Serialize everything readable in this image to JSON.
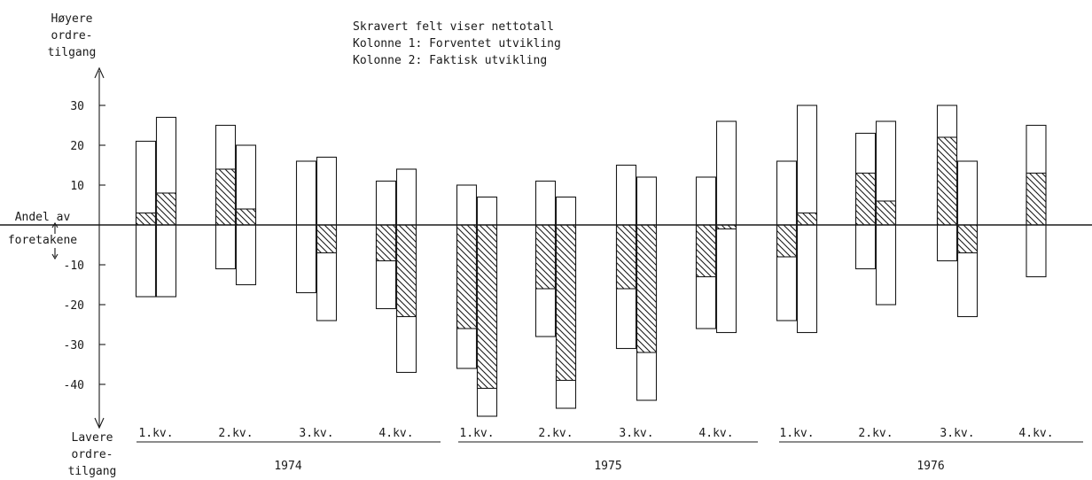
{
  "notes": [
    "Skravert felt viser nettotall",
    "Kolonne 1: Forventet utvikling",
    "Kolonne 2: Faktisk utvikling"
  ],
  "top_caption": [
    "Høyere",
    "ordre-",
    "tilgang"
  ],
  "mid_caption": [
    "Andel av",
    "foretakene"
  ],
  "bottom_caption": [
    "Lavere",
    "ordre-",
    "tilgang"
  ],
  "chart_data": {
    "type": "bar",
    "yticks": [
      30,
      20,
      10,
      -10,
      -20,
      -30,
      -40
    ],
    "ytick_labels": [
      "30",
      "20",
      "10",
      "-10",
      "-20",
      "-30",
      "-40"
    ],
    "ylim": [
      -49,
      34
    ],
    "years": [
      "1974",
      "1975",
      "1976"
    ],
    "quarter_labels": [
      "1.kv.",
      "2.kv.",
      "3.kv.",
      "4.kv.",
      "1.kv.",
      "2.kv.",
      "3.kv.",
      "4.kv.",
      "1.kv.",
      "2.kv.",
      "3.kv.",
      "4.kv."
    ],
    "quarters": [
      {
        "label": "1.kv.",
        "year": "1974",
        "bars": [
          {
            "up": 21,
            "down": -18,
            "net": 3
          },
          {
            "up": 27,
            "down": -18,
            "net": 8
          }
        ]
      },
      {
        "label": "2.kv.",
        "year": "1974",
        "bars": [
          {
            "up": 25,
            "down": -11,
            "net": 14
          },
          {
            "up": 20,
            "down": -15,
            "net": 4
          }
        ]
      },
      {
        "label": "3.kv.",
        "year": "1974",
        "bars": [
          {
            "up": 16,
            "down": -17,
            "net": 0
          },
          {
            "up": 17,
            "down": -24,
            "net": -7
          }
        ]
      },
      {
        "label": "4.kv.",
        "year": "1974",
        "bars": [
          {
            "up": 11,
            "down": -21,
            "net": -9
          },
          {
            "up": 14,
            "down": -37,
            "net": -23
          }
        ]
      },
      {
        "label": "1.kv.",
        "year": "1975",
        "bars": [
          {
            "up": 10,
            "down": -36,
            "net": -26
          },
          {
            "up": 7,
            "down": -48,
            "net": -41
          }
        ]
      },
      {
        "label": "2.kv.",
        "year": "1975",
        "bars": [
          {
            "up": 11,
            "down": -28,
            "net": -16
          },
          {
            "up": 7,
            "down": -46,
            "net": -39
          }
        ]
      },
      {
        "label": "3.kv.",
        "year": "1975",
        "bars": [
          {
            "up": 15,
            "down": -31,
            "net": -16
          },
          {
            "up": 12,
            "down": -44,
            "net": -32
          }
        ]
      },
      {
        "label": "4.kv.",
        "year": "1975",
        "bars": [
          {
            "up": 12,
            "down": -26,
            "net": -13
          },
          {
            "up": 26,
            "down": -27,
            "net": -1
          }
        ]
      },
      {
        "label": "1.kv.",
        "year": "1976",
        "bars": [
          {
            "up": 16,
            "down": -24,
            "net": -8
          },
          {
            "up": 30,
            "down": -27,
            "net": 3
          }
        ]
      },
      {
        "label": "2.kv.",
        "year": "1976",
        "bars": [
          {
            "up": 23,
            "down": -11,
            "net": 13
          },
          {
            "up": 26,
            "down": -20,
            "net": 6
          }
        ]
      },
      {
        "label": "3.kv.",
        "year": "1976",
        "bars": [
          {
            "up": 30,
            "down": -9,
            "net": 22
          },
          {
            "up": 16,
            "down": -23,
            "net": -7
          }
        ]
      },
      {
        "label": "4.kv.",
        "year": "1976",
        "bars": [
          {
            "up": 25,
            "down": -13,
            "net": 13
          }
        ]
      }
    ]
  }
}
